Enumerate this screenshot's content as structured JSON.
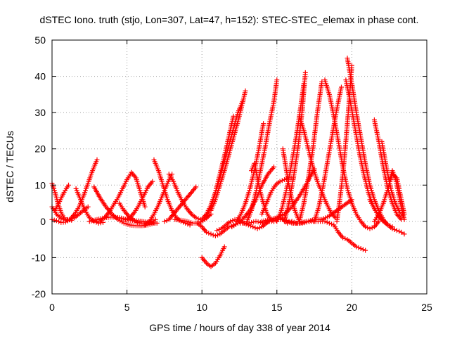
{
  "chart_data": {
    "type": "scatter",
    "title": "dSTEC Iono. truth (stjo, Lon=307, Lat=47, h=152): STEC-STEC_elemax in phase cont.",
    "xlabel": "GPS time / hours of day 338 of year 2014",
    "ylabel": "dSTEC  / TECUs",
    "xlim": [
      0,
      25
    ],
    "ylim": [
      -20,
      50
    ],
    "xticks": [
      0,
      5,
      10,
      15,
      20,
      25
    ],
    "yticks": [
      -20,
      -10,
      0,
      10,
      20,
      30,
      40,
      50
    ],
    "grid": true,
    "marker": "plus",
    "color": "#ff0000",
    "arcs": [
      {
        "x": [
          0.0,
          0.3,
          0.6,
          0.9,
          1.2,
          1.5,
          1.8,
          2.1,
          2.4,
          2.7,
          3.0
        ],
        "y": [
          0.5,
          0.2,
          -0.3,
          -0.2,
          0.5,
          2.0,
          4.0,
          7.0,
          10.5,
          14.0,
          17.0
        ]
      },
      {
        "x": [
          0.0,
          0.2,
          0.4,
          0.6,
          0.8,
          1.0,
          1.3
        ],
        "y": [
          10.5,
          8.0,
          5.0,
          2.5,
          1.0,
          0.5,
          0.3
        ]
      },
      {
        "x": [
          0.2,
          0.5,
          0.8,
          1.1
        ],
        "y": [
          3.0,
          5.5,
          8.0,
          10.0
        ]
      },
      {
        "x": [
          0.0,
          0.3,
          0.6,
          0.9,
          1.2,
          1.5,
          1.8,
          2.1,
          2.4
        ],
        "y": [
          4.0,
          2.0,
          0.8,
          0.3,
          0.5,
          1.0,
          2.0,
          3.0,
          4.0
        ]
      },
      {
        "x": [
          1.6,
          1.9,
          2.2,
          2.5,
          2.8,
          3.1,
          3.4
        ],
        "y": [
          9.0,
          6.0,
          3.0,
          1.0,
          0.0,
          -0.5,
          -0.3
        ]
      },
      {
        "x": [
          2.8,
          3.2,
          3.6,
          4.0,
          4.4,
          4.8,
          5.2,
          5.6,
          6.0,
          6.4,
          6.8
        ],
        "y": [
          9.5,
          6.5,
          4.0,
          2.0,
          0.5,
          -0.5,
          -1.0,
          -1.2,
          -1.2,
          -1.0,
          -0.5
        ]
      },
      {
        "x": [
          2.5,
          3.0,
          3.5,
          4.0,
          4.5,
          5.0,
          5.5,
          6.0,
          6.5,
          7.0
        ],
        "y": [
          0.0,
          0.5,
          1.0,
          1.2,
          1.0,
          0.5,
          0.2,
          0.0,
          -0.3,
          -0.5
        ]
      },
      {
        "x": [
          3.2,
          3.5,
          3.8,
          4.1,
          4.4,
          4.7,
          5.0,
          5.3,
          5.6,
          5.9,
          6.2
        ],
        "y": [
          0.0,
          1.0,
          2.5,
          4.5,
          6.5,
          9.0,
          11.5,
          13.5,
          12.0,
          8.0,
          4.0
        ]
      },
      {
        "x": [
          4.5,
          4.8,
          5.1,
          5.4,
          5.7,
          6.0,
          6.3,
          6.6,
          6.9
        ],
        "y": [
          5.0,
          3.0,
          1.5,
          0.5,
          -0.3,
          -0.5,
          -0.5,
          -0.2,
          0.5
        ]
      },
      {
        "x": [
          4.9,
          5.2,
          5.5,
          5.8,
          6.1,
          6.4,
          6.7
        ],
        "y": [
          0.5,
          1.0,
          2.5,
          4.5,
          7.0,
          9.5,
          11.0
        ]
      },
      {
        "x": [
          6.8,
          7.1,
          7.4,
          7.7,
          8.0,
          8.3,
          8.6,
          8.9,
          9.2
        ],
        "y": [
          17.0,
          14.0,
          10.0,
          6.0,
          3.0,
          1.0,
          0.0,
          -0.5,
          -1.0
        ]
      },
      {
        "x": [
          6.2,
          6.5,
          6.8,
          7.1,
          7.4,
          7.7,
          8.0
        ],
        "y": [
          -1.0,
          0.0,
          2.0,
          4.5,
          7.5,
          10.5,
          13.0
        ]
      },
      {
        "x": [
          7.8,
          8.1,
          8.4,
          8.7,
          9.0,
          9.3,
          9.6,
          9.9
        ],
        "y": [
          13.0,
          11.0,
          8.0,
          5.5,
          3.5,
          2.0,
          1.0,
          0.5
        ]
      },
      {
        "x": [
          7.5,
          7.8,
          8.1,
          8.4,
          8.7,
          9.0,
          9.3,
          9.6
        ],
        "y": [
          0.0,
          0.5,
          2.0,
          3.5,
          5.0,
          6.5,
          8.0,
          9.5
        ]
      },
      {
        "x": [
          8.2,
          8.6,
          9.0,
          9.4,
          9.8,
          10.2,
          10.6
        ],
        "y": [
          0.5,
          0.3,
          0.0,
          -0.5,
          -0.5,
          0.5,
          2.0
        ]
      },
      {
        "x": [
          10.0,
          10.3,
          10.6,
          10.9,
          11.2,
          11.5
        ],
        "y": [
          -10.0,
          -11.5,
          -12.5,
          -11.5,
          -9.5,
          -7.0
        ]
      },
      {
        "x": [
          9.7,
          10.0,
          10.3,
          10.6,
          10.9,
          11.2,
          11.5,
          11.8,
          12.1,
          12.4,
          12.7,
          13.0,
          13.3,
          13.6,
          13.9,
          14.2,
          14.5,
          14.8,
          15.1,
          15.4,
          15.7,
          16.0,
          16.3
        ],
        "y": [
          -0.5,
          -1.5,
          -3.0,
          -3.5,
          -4.0,
          -3.5,
          -2.5,
          -1.5,
          -1.0,
          -0.5,
          -0.5,
          -0.5,
          -0.3,
          0.0,
          -0.3,
          -0.5,
          0.0,
          0.0,
          0.5,
          0.5,
          -0.5,
          0.0,
          -0.5
        ]
      },
      {
        "x": [
          10.0,
          10.3,
          10.6,
          10.9,
          11.2,
          11.5,
          11.8,
          12.1,
          12.4,
          12.7
        ],
        "y": [
          0.5,
          2.0,
          4.5,
          8.0,
          12.0,
          16.5,
          21.0,
          25.5,
          30.0,
          33.0
        ]
      },
      {
        "x": [
          10.3,
          10.6,
          10.9,
          11.2,
          11.5,
          11.8,
          12.1
        ],
        "y": [
          1.0,
          4.0,
          8.0,
          13.0,
          18.0,
          23.5,
          29.0
        ]
      },
      {
        "x": [
          10.6,
          10.9,
          11.2,
          11.5,
          11.8,
          12.1,
          12.4,
          12.7,
          12.9
        ],
        "y": [
          3.0,
          6.0,
          10.0,
          14.0,
          18.5,
          23.0,
          27.5,
          32.5,
          36.0
        ]
      },
      {
        "x": [
          11.0,
          11.3,
          11.6,
          11.9,
          12.2,
          12.5,
          12.8,
          13.1,
          13.4,
          13.7,
          14.0,
          14.3,
          14.6,
          14.9,
          15.2,
          15.5,
          15.8,
          16.1,
          16.4,
          16.7,
          17.0,
          17.3,
          17.6,
          17.9,
          18.2,
          18.5,
          18.8,
          19.1,
          19.4,
          19.7,
          20.0,
          20.3,
          20.6,
          20.9
        ],
        "y": [
          -2.5,
          -2.0,
          -1.0,
          0.0,
          0.5,
          0.3,
          -0.5,
          -1.0,
          -1.5,
          -2.0,
          -1.5,
          -0.5,
          0.5,
          0.8,
          1.0,
          0.5,
          0.0,
          -0.5,
          -0.5,
          -0.5,
          -0.2,
          0.0,
          0.0,
          0.0,
          0.0,
          -0.5,
          -1.0,
          -3.0,
          -4.5,
          -5.0,
          -6.0,
          -7.0,
          -7.5,
          -8.0
        ]
      },
      {
        "x": [
          13.3,
          13.5,
          13.7,
          13.9,
          14.1,
          14.3,
          14.5,
          14.8
        ],
        "y": [
          14.0,
          16.0,
          12.0,
          8.0,
          5.0,
          2.5,
          1.0,
          0.0
        ]
      },
      {
        "x": [
          12.0,
          12.4,
          12.8,
          13.2,
          13.6,
          14.0,
          14.4,
          14.8
        ],
        "y": [
          -1.5,
          -0.5,
          1.0,
          3.0,
          6.0,
          10.0,
          13.0,
          15.0
        ]
      },
      {
        "x": [
          13.0,
          13.3,
          13.6,
          13.9,
          14.2,
          14.5,
          14.8,
          15.0
        ],
        "y": [
          0.0,
          3.0,
          8.0,
          14.0,
          20.0,
          27.0,
          33.0,
          39.0
        ]
      },
      {
        "x": [
          12.3,
          12.6,
          12.9,
          13.2,
          13.5,
          13.8,
          14.1
        ],
        "y": [
          0.0,
          2.0,
          5.0,
          9.0,
          14.0,
          20.0,
          27.0
        ]
      },
      {
        "x": [
          14.0,
          14.3,
          14.6,
          14.9,
          15.2,
          15.5,
          15.8,
          16.1
        ],
        "y": [
          2.0,
          5.0,
          8.0,
          10.0,
          11.0,
          11.5,
          12.0,
          12.0
        ]
      },
      {
        "x": [
          15.4,
          15.6,
          15.8,
          16.0,
          16.2,
          16.5
        ],
        "y": [
          20.0,
          15.0,
          10.0,
          6.0,
          3.0,
          0.0
        ]
      },
      {
        "x": [
          14.0,
          14.5,
          15.0,
          15.5,
          16.0,
          16.5,
          17.0,
          17.5
        ],
        "y": [
          0.0,
          0.5,
          1.0,
          2.0,
          4.0,
          7.0,
          10.5,
          14.5
        ]
      },
      {
        "x": [
          15.0,
          15.3,
          15.6,
          15.9,
          16.2,
          16.5,
          16.8
        ],
        "y": [
          0.0,
          3.0,
          8.0,
          14.0,
          21.0,
          29.0,
          38.0
        ]
      },
      {
        "x": [
          15.5,
          15.8,
          16.1,
          16.4,
          16.7,
          16.9
        ],
        "y": [
          0.0,
          5.0,
          12.0,
          20.0,
          31.0,
          41.0
        ]
      },
      {
        "x": [
          16.5,
          16.8,
          17.1,
          17.4,
          17.7,
          18.0,
          18.3,
          18.6,
          18.9
        ],
        "y": [
          29.0,
          25.0,
          20.0,
          15.0,
          11.0,
          8.0,
          5.0,
          2.5,
          1.0
        ]
      },
      {
        "x": [
          16.5,
          16.8,
          17.1,
          17.4,
          17.7,
          18.0
        ],
        "y": [
          0.0,
          5.0,
          12.0,
          20.0,
          30.0,
          38.5
        ]
      },
      {
        "x": [
          17.5,
          17.8,
          18.1,
          18.4,
          18.7,
          19.0,
          19.3
        ],
        "y": [
          0.0,
          4.0,
          10.0,
          17.0,
          24.0,
          31.0,
          37.0
        ]
      },
      {
        "x": [
          18.2,
          18.5,
          18.8,
          19.1,
          19.4,
          19.7,
          20.0,
          20.3,
          20.6,
          20.9,
          21.2,
          21.5,
          21.8
        ],
        "y": [
          39.0,
          35.0,
          29.0,
          22.0,
          15.0,
          9.0,
          5.0,
          2.0,
          0.0,
          -1.5,
          -2.0,
          -1.5,
          0.0
        ]
      },
      {
        "x": [
          16.0,
          16.5,
          17.0,
          17.5,
          18.0,
          18.5,
          19.0,
          19.5,
          20.0
        ],
        "y": [
          -0.5,
          -0.5,
          0.0,
          0.5,
          0.5,
          1.5,
          3.0,
          4.5,
          6.0
        ]
      },
      {
        "x": [
          19.0,
          19.2,
          19.4,
          19.6,
          19.8,
          20.0
        ],
        "y": [
          0.0,
          6.0,
          13.0,
          22.0,
          32.0,
          43.0
        ]
      },
      {
        "x": [
          19.7,
          20.0,
          20.3,
          20.6,
          20.9,
          21.2,
          21.5,
          21.8,
          22.1,
          22.4,
          22.7
        ],
        "y": [
          45.0,
          38.0,
          30.0,
          23.0,
          16.0,
          10.0,
          6.0,
          3.0,
          0.5,
          -1.0,
          -1.5
        ]
      },
      {
        "x": [
          19.6,
          19.9,
          20.2,
          20.5,
          20.8,
          21.1,
          21.4,
          21.7,
          22.0
        ],
        "y": [
          39.0,
          33.0,
          26.0,
          19.0,
          13.0,
          8.0,
          4.5,
          2.0,
          0.5
        ]
      },
      {
        "x": [
          21.2,
          21.5,
          21.8,
          22.1,
          22.4,
          22.7,
          23.0,
          23.3,
          23.5
        ],
        "y": [
          6.0,
          3.5,
          1.5,
          0.0,
          -1.0,
          -2.0,
          -2.5,
          -3.0,
          -3.5
        ]
      },
      {
        "x": [
          21.5,
          21.8,
          22.1,
          22.4,
          22.7,
          23.0,
          23.3
        ],
        "y": [
          28.0,
          22.0,
          15.0,
          9.0,
          5.0,
          2.0,
          0.5
        ]
      },
      {
        "x": [
          22.0,
          22.3,
          22.6,
          22.9,
          23.2,
          23.4
        ],
        "y": [
          22.0,
          15.0,
          9.0,
          5.0,
          2.5,
          1.5
        ]
      },
      {
        "x": [
          21.5,
          21.8,
          22.1,
          22.4,
          22.7,
          23.0,
          23.3,
          23.5
        ],
        "y": [
          0.0,
          2.0,
          5.0,
          9.0,
          13.0,
          12.0,
          6.0,
          2.0
        ]
      },
      {
        "x": [
          22.5,
          22.7,
          22.9,
          23.1,
          23.3,
          23.5
        ],
        "y": [
          11.0,
          14.0,
          12.0,
          8.0,
          4.0,
          0.5
        ]
      }
    ]
  }
}
